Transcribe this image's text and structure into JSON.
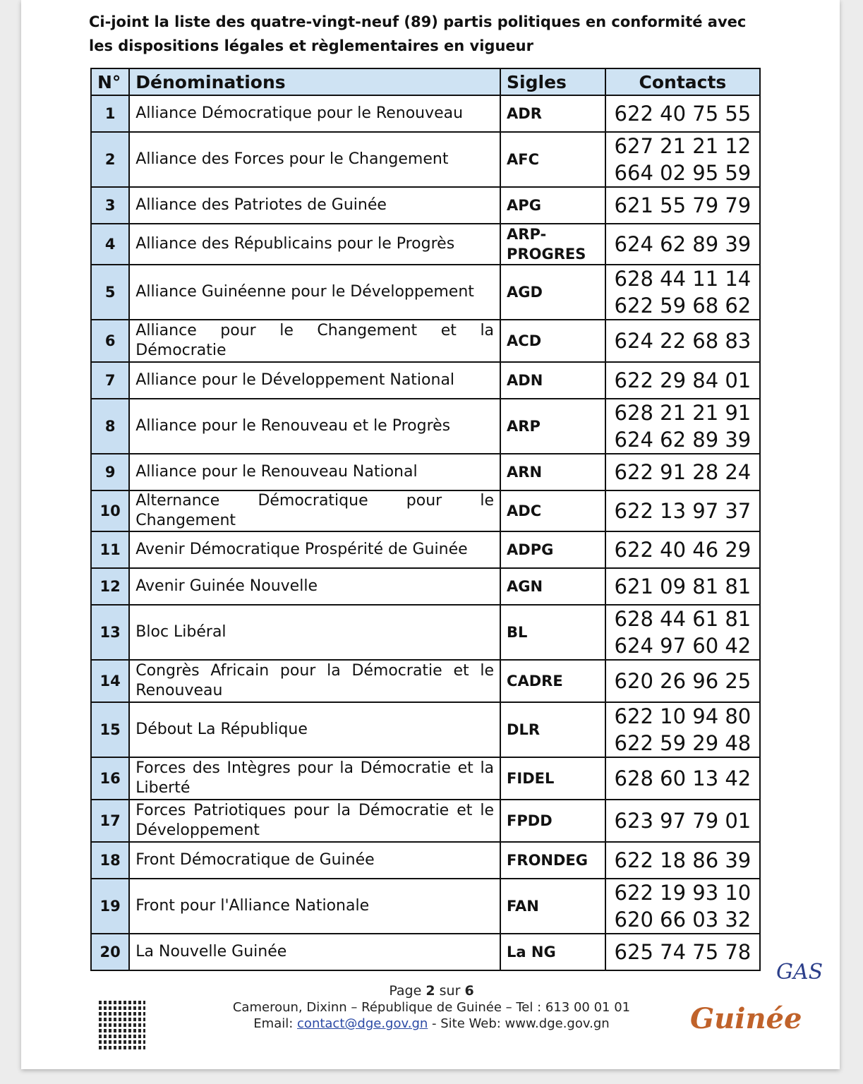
{
  "intro": "Ci-joint la liste des quatre-vingt-neuf (89) partis politiques en conformité avec les dispositions légales et règlementaires en vigueur",
  "table": {
    "headers": {
      "num": "N°",
      "name": "Dénominations",
      "sigle": "Sigles",
      "contacts": "Contacts"
    },
    "rows": [
      {
        "num": "1",
        "name": "Alliance Démocratique pour le Renouveau",
        "sigle": "ADR",
        "contacts": [
          "622 40 75 55"
        ]
      },
      {
        "num": "2",
        "name": "Alliance des Forces pour le Changement",
        "sigle": "AFC",
        "contacts": [
          "627 21 21 12",
          "664 02 95 59"
        ]
      },
      {
        "num": "3",
        "name": "Alliance des Patriotes de Guinée",
        "sigle": "APG",
        "contacts": [
          "621 55 79 79"
        ]
      },
      {
        "num": "4",
        "name": "Alliance des Républicains pour le Progrès",
        "sigle": "ARP-PROGRES",
        "contacts": [
          "624 62 89 39"
        ]
      },
      {
        "num": "5",
        "name": "Alliance Guinéenne pour le Développement",
        "sigle": "AGD",
        "contacts": [
          "628 44 11 14",
          "622 59 68 62"
        ]
      },
      {
        "num": "6",
        "name": "Alliance pour le Changement et la Démocratie",
        "sigle": "ACD",
        "contacts": [
          "624 22 68 83"
        ]
      },
      {
        "num": "7",
        "name": "Alliance pour le Développement National",
        "sigle": "ADN",
        "contacts": [
          "622 29 84 01"
        ]
      },
      {
        "num": "8",
        "name": "Alliance pour le Renouveau et le Progrès",
        "sigle": "ARP",
        "contacts": [
          "628 21 21 91",
          "624 62 89 39"
        ]
      },
      {
        "num": "9",
        "name": "Alliance pour le Renouveau National",
        "sigle": "ARN",
        "contacts": [
          "622 91 28 24"
        ]
      },
      {
        "num": "10",
        "name": "Alternance Démocratique pour le Changement",
        "sigle": "ADC",
        "contacts": [
          "622 13 97 37"
        ]
      },
      {
        "num": "11",
        "name": "Avenir Démocratique Prospérité de Guinée",
        "sigle": "ADPG",
        "contacts": [
          "622 40 46 29"
        ]
      },
      {
        "num": "12",
        "name": "Avenir Guinée Nouvelle",
        "sigle": "AGN",
        "contacts": [
          "621 09 81 81"
        ]
      },
      {
        "num": "13",
        "name": "Bloc Libéral",
        "sigle": "BL",
        "contacts": [
          "628 44 61 81",
          "624 97 60 42"
        ]
      },
      {
        "num": "14",
        "name": "Congrès Africain pour la Démocratie et le Renouveau",
        "sigle": "CADRE",
        "contacts": [
          "620 26 96 25"
        ]
      },
      {
        "num": "15",
        "name": "Débout La République",
        "sigle": "DLR",
        "contacts": [
          "622 10 94 80",
          "622 59 29 48"
        ]
      },
      {
        "num": "16",
        "name": "Forces des Intègres pour la Démocratie et la Liberté",
        "sigle": "FIDEL",
        "contacts": [
          "628 60 13 42"
        ]
      },
      {
        "num": "17",
        "name": "Forces Patriotiques pour la Démocratie et le Développement",
        "sigle": "FPDD",
        "contacts": [
          "623 97 79 01"
        ]
      },
      {
        "num": "18",
        "name": "Front Démocratique de Guinée",
        "sigle": "FRONDEG",
        "contacts": [
          "622 18 86 39"
        ]
      },
      {
        "num": "19",
        "name": "Front pour l'Alliance Nationale",
        "sigle": "FAN",
        "contacts": [
          "622 19 93 10",
          "620 66 03 32"
        ]
      },
      {
        "num": "20",
        "name": "La Nouvelle Guinée",
        "sigle": "La NG",
        "contacts": [
          "625 74 75 78"
        ]
      }
    ]
  },
  "footer": {
    "page_prefix": "Page ",
    "page_current": "2",
    "page_mid": " sur ",
    "page_total": "6",
    "address": "Cameroun, Dixinn – République de Guinée – Tel : 613 00 01 01",
    "email_label": "Email: ",
    "email": "contact@dge.gov.gn",
    "site": " - Site Web: www.dge.gov.gn"
  },
  "logo_text": "Guinée",
  "signature": "GAS",
  "colors": {
    "header_bg": "#cfe3f3",
    "num_bg": "#c9dff2",
    "logo": "#c0622a",
    "link": "#2b4aa5"
  }
}
